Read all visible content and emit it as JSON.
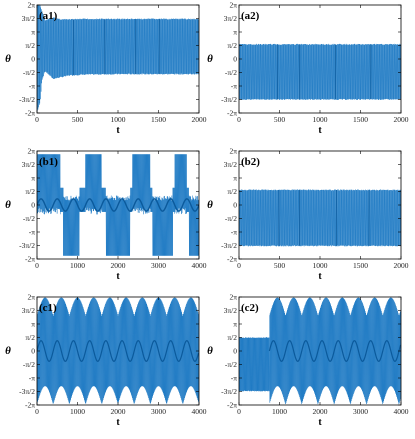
{
  "colors": {
    "line": "#1f7bc4",
    "line_dark": "#0b5a9c",
    "axis": "#000000"
  },
  "y_tick_labels": [
    "-2π",
    "-3π/2",
    "-π",
    "-π/2",
    "0",
    "π/2",
    "π",
    "3π/2",
    "2π"
  ],
  "chart_data": [
    {
      "id": "a1",
      "type": "line",
      "panel_label": "(a1)",
      "xlabel": "t",
      "ylabel": "θ",
      "xlim": [
        0,
        2000
      ],
      "xticks": [
        0,
        500,
        1000,
        1500,
        2000
      ],
      "ylim": [
        -6.2832,
        6.2832
      ],
      "yticks": [
        -6.2832,
        -4.7124,
        -3.1416,
        -1.5708,
        0,
        1.5708,
        3.1416,
        4.7124,
        6.2832
      ],
      "envelope": [
        {
          "t": 0,
          "min": -6.2,
          "max": 6.2
        },
        {
          "t": 40,
          "min": -5.0,
          "max": 6.2
        },
        {
          "t": 60,
          "min": -2.5,
          "max": 5.6
        },
        {
          "t": 100,
          "min": -1.4,
          "max": 4.5
        },
        {
          "t": 200,
          "min": -2.3,
          "max": 4.8
        },
        {
          "t": 300,
          "min": -2.1,
          "max": 4.6
        },
        {
          "t": 400,
          "min": -1.9,
          "max": 4.6
        },
        {
          "t": 600,
          "min": -1.8,
          "max": 4.65
        },
        {
          "t": 1000,
          "min": -1.75,
          "max": 4.65
        },
        {
          "t": 2000,
          "min": -1.75,
          "max": 4.65
        }
      ]
    },
    {
      "id": "a2",
      "type": "line",
      "panel_label": "(a2)",
      "xlabel": "t",
      "ylabel": "θ",
      "xlim": [
        0,
        2000
      ],
      "xticks": [
        0,
        500,
        1000,
        1500,
        2000
      ],
      "ylim": [
        -6.2832,
        6.2832
      ],
      "yticks": [
        -6.2832,
        -4.7124,
        -3.1416,
        -1.5708,
        0,
        1.5708,
        3.1416,
        4.7124,
        6.2832
      ],
      "envelope": [
        {
          "t": 0,
          "min": -4.7,
          "max": 1.7
        },
        {
          "t": 2000,
          "min": -4.7,
          "max": 1.7
        }
      ]
    },
    {
      "id": "b1",
      "type": "line",
      "panel_label": "(b1)",
      "xlabel": "t",
      "ylabel": "θ",
      "xlim": [
        0,
        4000
      ],
      "xticks": [
        0,
        1000,
        2000,
        3000,
        4000
      ],
      "ylim": [
        -6.2832,
        6.2832
      ],
      "yticks": [
        -6.2832,
        -4.7124,
        -3.1416,
        -1.5708,
        0,
        1.5708,
        3.1416,
        4.7124,
        6.2832
      ],
      "regime": "intermittent",
      "bursts_up": [
        [
          0,
          580
        ]
      ],
      "bursts_down": [
        [
          650,
          1050
        ],
        [
          1700,
          2300
        ],
        [
          2850,
          3350
        ],
        [
          3750,
          4000
        ]
      ],
      "bursts_up_late": [
        [
          1200,
          1600
        ],
        [
          2350,
          2800
        ],
        [
          3400,
          3700
        ]
      ],
      "quiet_band": [
        -1.3,
        3.2
      ]
    },
    {
      "id": "b2",
      "type": "line",
      "panel_label": "(b2)",
      "xlabel": "t",
      "ylabel": "θ",
      "xlim": [
        0,
        2000
      ],
      "xticks": [
        0,
        500,
        1000,
        1500,
        2000
      ],
      "ylim": [
        -6.2832,
        6.2832
      ],
      "yticks": [
        -6.2832,
        -4.7124,
        -3.1416,
        -1.5708,
        0,
        1.5708,
        3.1416,
        4.7124,
        6.2832
      ],
      "envelope": [
        {
          "t": 0,
          "min": -4.75,
          "max": 1.75
        },
        {
          "t": 2000,
          "min": -4.75,
          "max": 1.75
        }
      ]
    },
    {
      "id": "c1",
      "type": "line",
      "panel_label": "(c1)",
      "xlabel": "t",
      "ylabel": "θ",
      "xlim": [
        0,
        4000
      ],
      "xticks": [
        0,
        1000,
        2000,
        3000,
        4000
      ],
      "ylim": [
        -6.2832,
        6.2832
      ],
      "yticks": [
        -6.2832,
        -4.7124,
        -3.1416,
        -1.5708,
        0,
        1.5708,
        3.1416,
        4.7124,
        6.2832
      ],
      "regime": "periodic",
      "period": 400,
      "max": 6.2,
      "min": -6.2,
      "inner_band": [
        -1.5,
        1.5
      ]
    },
    {
      "id": "c2",
      "type": "line",
      "panel_label": "(c2)",
      "xlabel": "t",
      "ylabel": "θ",
      "xlim": [
        0,
        4000
      ],
      "xticks": [
        0,
        1000,
        2000,
        3000,
        4000
      ],
      "ylim": [
        -6.2832,
        6.2832
      ],
      "yticks": [
        -6.2832,
        -4.7124,
        -3.1416,
        -1.5708,
        0,
        1.5708,
        3.1416,
        4.7124,
        6.2832
      ],
      "regime": "transient_then_periodic",
      "transient": {
        "t_end": 750,
        "min": -4.7,
        "max": 1.6
      },
      "period": 400,
      "max": 6.2,
      "min": -6.2,
      "inner_band": [
        -1.5,
        1.5
      ]
    }
  ]
}
